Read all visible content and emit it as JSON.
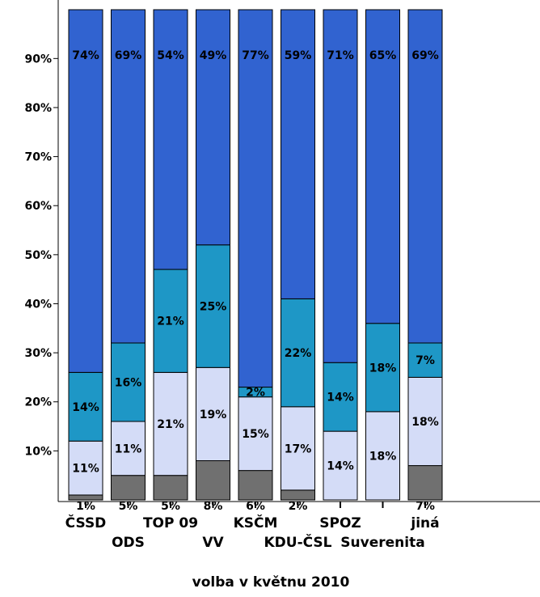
{
  "chart_data": {
    "type": "bar",
    "stacked": true,
    "normalized": true,
    "xlabel": "volba v květnu 2010",
    "ylabel": "",
    "ylim": [
      0,
      100
    ],
    "y_ticks": [
      "10%",
      "20%",
      "30%",
      "40%",
      "50%",
      "60%",
      "70%",
      "80%",
      "90%"
    ],
    "grid": false,
    "categories": [
      "ČSSD",
      "ODS",
      "TOP 09",
      "VV",
      "KSČM",
      "KDU-ČSL",
      "SPOZ",
      "Suverenita",
      "jiná"
    ],
    "series": [
      {
        "color": "#707070",
        "values": [
          1,
          5,
          5,
          8,
          6,
          2,
          0,
          0,
          7
        ],
        "labels": [
          "1%",
          "5%",
          "5%",
          "8%",
          "6%",
          "2%",
          "",
          "",
          "7%"
        ]
      },
      {
        "color": "#d4dcf7",
        "values": [
          11,
          11,
          21,
          19,
          15,
          17,
          14,
          18,
          18
        ],
        "labels": [
          "11%",
          "11%",
          "21%",
          "19%",
          "15%",
          "17%",
          "14%",
          "18%",
          "18%"
        ]
      },
      {
        "color": "#1e97c6",
        "values": [
          14,
          16,
          21,
          25,
          2,
          22,
          14,
          18,
          7
        ],
        "labels": [
          "14%",
          "16%",
          "21%",
          "25%",
          "2%",
          "22%",
          "14%",
          "18%",
          "7%"
        ]
      },
      {
        "color": "#3163d0",
        "values": [
          74,
          69,
          54,
          49,
          77,
          59,
          71,
          65,
          69
        ],
        "labels": [
          "74%",
          "69%",
          "54%",
          "49%",
          "77%",
          "59%",
          "71%",
          "65%",
          "69%"
        ]
      }
    ]
  }
}
